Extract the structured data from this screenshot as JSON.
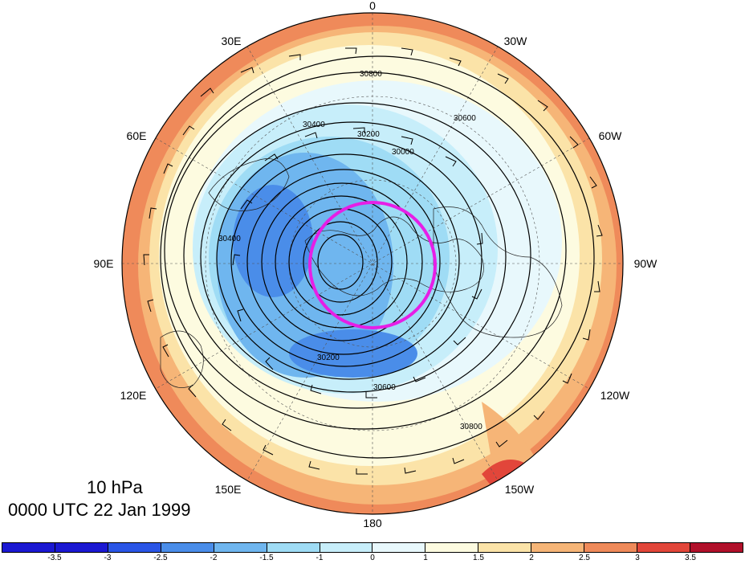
{
  "title": {
    "level": "10 hPa",
    "time": "0000 UTC 22 Jan 1999"
  },
  "longitude_labels": [
    "0",
    "30W",
    "60W",
    "90W",
    "120W",
    "150W",
    "180",
    "150E",
    "120E",
    "90E",
    "60E",
    "30E"
  ],
  "contour_labels": [
    "30800",
    "30600",
    "30400",
    "30200",
    "30000",
    "30400",
    "30200",
    "30600",
    "30800"
  ],
  "colorbar": {
    "ticks": [
      "-3.5",
      "-3",
      "-2.5",
      "-2",
      "-1.5",
      "-1",
      "0",
      "1",
      "1.5",
      "2",
      "2.5",
      "3",
      "3.5"
    ],
    "colors": [
      "#1b18d2",
      "#2a55e6",
      "#4a8de9",
      "#6fb6ef",
      "#9fdcf5",
      "#c7eefa",
      "#e8f8fc",
      "#fdfbe0",
      "#fbe3a8",
      "#f6b577",
      "#ef8a5a",
      "#e2463a",
      "#b1102a"
    ]
  },
  "colors": {
    "vortex_circle": "#e61ee6",
    "contour": "#000000",
    "cold_core": "#4a8de9",
    "warm_rim": "#ef8a5a"
  }
}
